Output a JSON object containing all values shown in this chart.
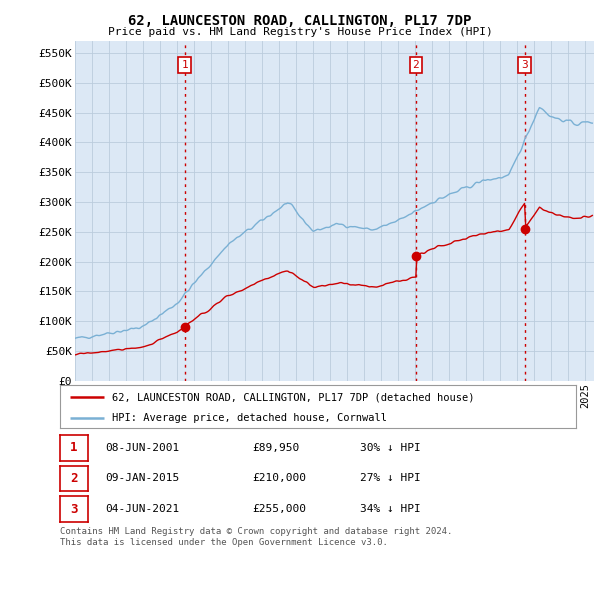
{
  "title": "62, LAUNCESTON ROAD, CALLINGTON, PL17 7DP",
  "subtitle": "Price paid vs. HM Land Registry's House Price Index (HPI)",
  "ylabel_ticks": [
    "£0",
    "£50K",
    "£100K",
    "£150K",
    "£200K",
    "£250K",
    "£300K",
    "£350K",
    "£400K",
    "£450K",
    "£500K",
    "£550K"
  ],
  "ytick_values": [
    0,
    50000,
    100000,
    150000,
    200000,
    250000,
    300000,
    350000,
    400000,
    450000,
    500000,
    550000
  ],
  "ylim": [
    0,
    570000
  ],
  "xlim_start": 1995.0,
  "xlim_end": 2025.5,
  "sale_dates_num": [
    2001.44,
    2015.03,
    2021.42
  ],
  "sale_prices": [
    89950,
    210000,
    255000
  ],
  "sale_labels": [
    "1",
    "2",
    "3"
  ],
  "vline_color": "#cc0000",
  "sale_marker_color": "#cc0000",
  "hpi_color": "#7ab0d4",
  "price_paid_color": "#cc0000",
  "chart_bg_color": "#dce8f5",
  "legend_entries": [
    "62, LAUNCESTON ROAD, CALLINGTON, PL17 7DP (detached house)",
    "HPI: Average price, detached house, Cornwall"
  ],
  "table_rows": [
    [
      "1",
      "08-JUN-2001",
      "£89,950",
      "30% ↓ HPI"
    ],
    [
      "2",
      "09-JAN-2015",
      "£210,000",
      "27% ↓ HPI"
    ],
    [
      "3",
      "04-JUN-2021",
      "£255,000",
      "34% ↓ HPI"
    ]
  ],
  "footnote": "Contains HM Land Registry data © Crown copyright and database right 2024.\nThis data is licensed under the Open Government Licence v3.0.",
  "bg_color": "#ffffff",
  "grid_color": "#bbccdd"
}
